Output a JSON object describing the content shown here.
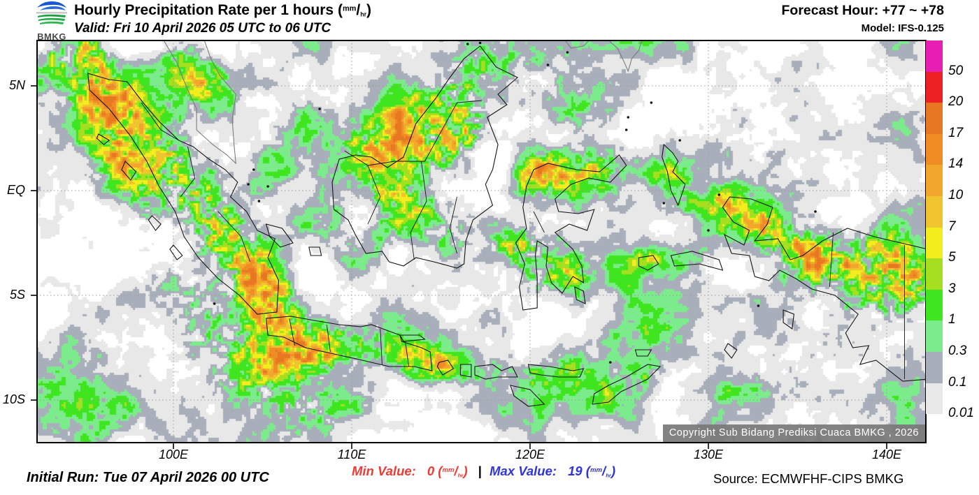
{
  "header": {
    "logo_text": "BMKG",
    "title_main": "Hourly Precipitation Rate per 1 hours",
    "unit_sup": "mm",
    "unit_sub": "hr",
    "valid": "Valid: Fri 10 April 2026 05 UTC to 06 UTC",
    "forecast_hour": "Forecast Hour: +77 ~ +78",
    "model": "Model: IFS-0.125"
  },
  "map": {
    "copyright": "Copyright Sub Bidang Prediksi Cuaca BMKG , 2026",
    "x_ticks": [
      {
        "label": "100E",
        "lon": 100
      },
      {
        "label": "110E",
        "lon": 110
      },
      {
        "label": "120E",
        "lon": 120
      },
      {
        "label": "130E",
        "lon": 130
      },
      {
        "label": "140E",
        "lon": 140
      }
    ],
    "y_ticks": [
      {
        "label": "5N",
        "lat": 5
      },
      {
        "label": "EQ",
        "lat": 0
      },
      {
        "label": "5S",
        "lat": -5
      },
      {
        "label": "10S",
        "lat": -10
      }
    ]
  },
  "legend": {
    "levels": [
      {
        "color": "#E61EB4",
        "label": "50"
      },
      {
        "color": "#ED2123",
        "label": "20"
      },
      {
        "color": "#E87722",
        "label": "17"
      },
      {
        "color": "#EF8D24",
        "label": "14"
      },
      {
        "color": "#F2A72C",
        "label": "10"
      },
      {
        "color": "#EFC42E",
        "label": "7"
      },
      {
        "color": "#F3ED1E",
        "label": "5"
      },
      {
        "color": "#A5DF1F",
        "label": "3"
      },
      {
        "color": "#3FE51F",
        "label": "1"
      },
      {
        "color": "#7BEB8C",
        "label": "0.3"
      },
      {
        "color": "#A9AFBA",
        "label": "0.1"
      },
      {
        "color": "#E8E8E8",
        "label": "0.01"
      }
    ]
  },
  "footer": {
    "initial_run": "Initial Run: Tue 07 April 2026 00 UTC",
    "min_label": "Min Value:",
    "min_value": "0",
    "max_label": "Max Value:",
    "max_value": "19",
    "separator": "|",
    "unit_sup": "mm",
    "unit_sub": "hr",
    "min_color": "#EE3B36",
    "max_color": "#2F35DD",
    "source": "Source: ECMWFHF-CIPS BMKG"
  }
}
